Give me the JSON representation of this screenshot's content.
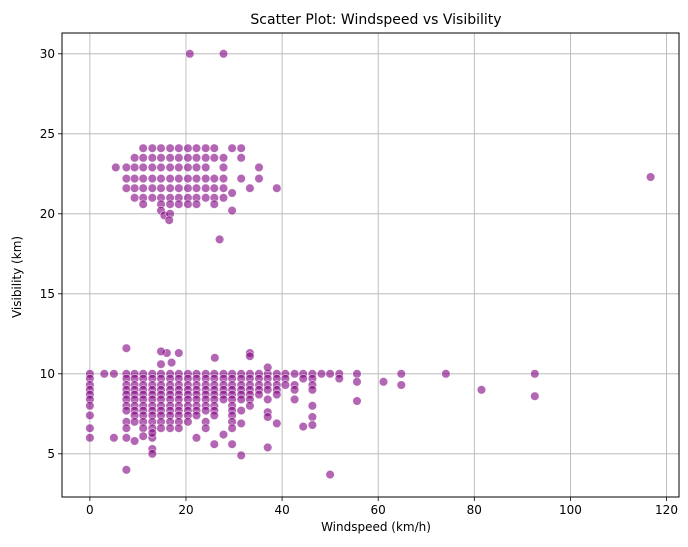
{
  "chart_data": {
    "type": "scatter",
    "title": "Scatter Plot: Windspeed vs Visibility",
    "xlabel": "Windspeed (km/h)",
    "ylabel": "Visibility (km)",
    "xlim": [
      -5.8,
      122.6
    ],
    "ylim": [
      2.3,
      31.3
    ],
    "xticks": [
      0,
      20,
      40,
      60,
      80,
      100,
      120
    ],
    "yticks": [
      5,
      10,
      15,
      20,
      25,
      30
    ],
    "grid": true,
    "legend": "none",
    "marker_color": "#800080",
    "marker_alpha": 0.6,
    "series": [
      {
        "points": [
          [
            20.8,
            30.0
          ],
          [
            27.8,
            30.0
          ],
          [
            116.7,
            22.3
          ],
          [
            5.4,
            22.9
          ],
          [
            11.1,
            24.1
          ],
          [
            13.0,
            24.1
          ],
          [
            14.8,
            24.1
          ],
          [
            16.7,
            24.1
          ],
          [
            18.5,
            24.1
          ],
          [
            20.4,
            24.1
          ],
          [
            22.2,
            24.1
          ],
          [
            24.1,
            24.1
          ],
          [
            25.9,
            24.1
          ],
          [
            29.6,
            24.1
          ],
          [
            31.5,
            24.1
          ],
          [
            9.3,
            23.5
          ],
          [
            11.1,
            23.5
          ],
          [
            13.0,
            23.5
          ],
          [
            14.8,
            23.5
          ],
          [
            16.7,
            23.5
          ],
          [
            18.5,
            23.5
          ],
          [
            20.4,
            23.5
          ],
          [
            22.2,
            23.5
          ],
          [
            24.1,
            23.5
          ],
          [
            25.9,
            23.5
          ],
          [
            27.8,
            23.5
          ],
          [
            31.5,
            23.5
          ],
          [
            7.6,
            22.9
          ],
          [
            9.3,
            22.9
          ],
          [
            11.1,
            22.9
          ],
          [
            13.0,
            22.9
          ],
          [
            14.8,
            22.9
          ],
          [
            16.7,
            22.9
          ],
          [
            18.5,
            22.9
          ],
          [
            20.4,
            22.9
          ],
          [
            22.2,
            22.9
          ],
          [
            24.1,
            22.9
          ],
          [
            27.8,
            22.9
          ],
          [
            35.2,
            22.9
          ],
          [
            7.6,
            22.2
          ],
          [
            9.3,
            22.2
          ],
          [
            11.1,
            22.2
          ],
          [
            13.0,
            22.2
          ],
          [
            14.8,
            22.2
          ],
          [
            16.7,
            22.2
          ],
          [
            18.5,
            22.2
          ],
          [
            20.4,
            22.2
          ],
          [
            22.2,
            22.2
          ],
          [
            24.1,
            22.2
          ],
          [
            25.9,
            22.2
          ],
          [
            27.8,
            22.2
          ],
          [
            31.5,
            22.2
          ],
          [
            35.2,
            22.2
          ],
          [
            7.6,
            21.6
          ],
          [
            9.3,
            21.6
          ],
          [
            11.1,
            21.6
          ],
          [
            13.0,
            21.6
          ],
          [
            14.8,
            21.6
          ],
          [
            16.7,
            21.6
          ],
          [
            18.5,
            21.6
          ],
          [
            20.4,
            21.6
          ],
          [
            22.2,
            21.6
          ],
          [
            24.1,
            21.6
          ],
          [
            25.9,
            21.6
          ],
          [
            27.8,
            21.6
          ],
          [
            33.3,
            21.6
          ],
          [
            38.9,
            21.6
          ],
          [
            9.3,
            21.0
          ],
          [
            11.1,
            21.0
          ],
          [
            13.0,
            21.0
          ],
          [
            14.8,
            21.0
          ],
          [
            16.7,
            21.0
          ],
          [
            18.5,
            21.0
          ],
          [
            20.4,
            21.0
          ],
          [
            22.2,
            21.0
          ],
          [
            24.1,
            21.0
          ],
          [
            25.9,
            21.0
          ],
          [
            27.8,
            21.0
          ],
          [
            29.6,
            21.3
          ],
          [
            11.1,
            20.6
          ],
          [
            14.8,
            20.6
          ],
          [
            16.7,
            20.6
          ],
          [
            18.5,
            20.6
          ],
          [
            20.4,
            20.6
          ],
          [
            22.2,
            20.6
          ],
          [
            25.9,
            20.6
          ],
          [
            29.6,
            20.2
          ],
          [
            14.8,
            20.2
          ],
          [
            15.5,
            19.9
          ],
          [
            16.7,
            20.0
          ],
          [
            16.5,
            19.6
          ],
          [
            27.0,
            18.4
          ],
          [
            0.0,
            10.0
          ],
          [
            3.0,
            10.0
          ],
          [
            5.0,
            10.0
          ],
          [
            7.6,
            10.0
          ],
          [
            9.3,
            10.0
          ],
          [
            11.1,
            10.0
          ],
          [
            13.0,
            10.0
          ],
          [
            14.8,
            10.0
          ],
          [
            16.7,
            10.0
          ],
          [
            18.5,
            10.0
          ],
          [
            20.4,
            10.0
          ],
          [
            22.2,
            10.0
          ],
          [
            24.1,
            10.0
          ],
          [
            25.9,
            10.0
          ],
          [
            27.8,
            10.0
          ],
          [
            29.6,
            10.0
          ],
          [
            31.5,
            10.0
          ],
          [
            33.3,
            10.0
          ],
          [
            35.2,
            10.0
          ],
          [
            37.0,
            10.0
          ],
          [
            38.9,
            10.0
          ],
          [
            40.7,
            10.0
          ],
          [
            42.6,
            10.0
          ],
          [
            44.4,
            10.0
          ],
          [
            46.3,
            10.0
          ],
          [
            48.2,
            10.0
          ],
          [
            50.0,
            10.0
          ],
          [
            51.9,
            10.0
          ],
          [
            55.6,
            10.0
          ],
          [
            64.8,
            10.0
          ],
          [
            74.1,
            10.0
          ],
          [
            92.6,
            10.0
          ],
          [
            7.6,
            11.6
          ],
          [
            14.8,
            10.6
          ],
          [
            16.0,
            11.3
          ],
          [
            17.0,
            10.7
          ],
          [
            18.5,
            11.3
          ],
          [
            14.8,
            11.4
          ],
          [
            26.0,
            11.0
          ],
          [
            33.3,
            11.3
          ],
          [
            33.3,
            11.1
          ],
          [
            37.0,
            10.4
          ],
          [
            0.0,
            9.7
          ],
          [
            7.6,
            9.7
          ],
          [
            9.3,
            9.7
          ],
          [
            11.1,
            9.7
          ],
          [
            13.0,
            9.7
          ],
          [
            14.8,
            9.7
          ],
          [
            16.7,
            9.7
          ],
          [
            18.5,
            9.7
          ],
          [
            20.4,
            9.7
          ],
          [
            22.2,
            9.7
          ],
          [
            24.1,
            9.7
          ],
          [
            25.9,
            9.7
          ],
          [
            27.8,
            9.7
          ],
          [
            29.6,
            9.7
          ],
          [
            31.5,
            9.7
          ],
          [
            33.3,
            9.7
          ],
          [
            35.2,
            9.7
          ],
          [
            37.0,
            9.7
          ],
          [
            38.9,
            9.7
          ],
          [
            40.7,
            9.7
          ],
          [
            44.4,
            9.7
          ],
          [
            46.3,
            9.7
          ],
          [
            51.9,
            9.7
          ],
          [
            55.6,
            9.5
          ],
          [
            61.1,
            9.5
          ],
          [
            0.0,
            9.3
          ],
          [
            7.6,
            9.3
          ],
          [
            9.3,
            9.3
          ],
          [
            11.1,
            9.3
          ],
          [
            13.0,
            9.3
          ],
          [
            14.8,
            9.3
          ],
          [
            16.7,
            9.3
          ],
          [
            18.5,
            9.3
          ],
          [
            20.4,
            9.3
          ],
          [
            22.2,
            9.3
          ],
          [
            24.1,
            9.3
          ],
          [
            25.9,
            9.3
          ],
          [
            27.8,
            9.3
          ],
          [
            29.6,
            9.3
          ],
          [
            31.5,
            9.3
          ],
          [
            33.3,
            9.3
          ],
          [
            35.2,
            9.3
          ],
          [
            37.0,
            9.3
          ],
          [
            38.9,
            9.3
          ],
          [
            40.7,
            9.3
          ],
          [
            42.6,
            9.3
          ],
          [
            46.3,
            9.3
          ],
          [
            64.8,
            9.3
          ],
          [
            0.0,
            9.0
          ],
          [
            7.6,
            9.0
          ],
          [
            9.3,
            9.0
          ],
          [
            11.1,
            9.0
          ],
          [
            13.0,
            9.0
          ],
          [
            14.8,
            9.0
          ],
          [
            16.7,
            9.0
          ],
          [
            18.5,
            9.0
          ],
          [
            20.4,
            9.0
          ],
          [
            22.2,
            9.0
          ],
          [
            24.1,
            9.0
          ],
          [
            25.9,
            9.0
          ],
          [
            27.8,
            9.0
          ],
          [
            29.6,
            9.0
          ],
          [
            31.5,
            9.0
          ],
          [
            33.3,
            9.0
          ],
          [
            35.2,
            9.0
          ],
          [
            37.0,
            9.0
          ],
          [
            38.9,
            9.0
          ],
          [
            42.6,
            9.0
          ],
          [
            46.3,
            9.0
          ],
          [
            81.5,
            9.0
          ],
          [
            0.0,
            8.7
          ],
          [
            7.6,
            8.7
          ],
          [
            9.3,
            8.7
          ],
          [
            11.1,
            8.7
          ],
          [
            13.0,
            8.7
          ],
          [
            14.8,
            8.7
          ],
          [
            16.7,
            8.7
          ],
          [
            18.5,
            8.7
          ],
          [
            20.4,
            8.7
          ],
          [
            22.2,
            8.7
          ],
          [
            24.1,
            8.7
          ],
          [
            25.9,
            8.7
          ],
          [
            27.8,
            8.7
          ],
          [
            29.6,
            8.7
          ],
          [
            31.5,
            8.7
          ],
          [
            33.3,
            8.7
          ],
          [
            35.2,
            8.7
          ],
          [
            38.9,
            8.7
          ],
          [
            92.6,
            8.6
          ],
          [
            0.0,
            8.4
          ],
          [
            7.6,
            8.4
          ],
          [
            9.3,
            8.4
          ],
          [
            11.1,
            8.4
          ],
          [
            13.0,
            8.4
          ],
          [
            14.8,
            8.4
          ],
          [
            16.7,
            8.4
          ],
          [
            18.5,
            8.4
          ],
          [
            20.4,
            8.4
          ],
          [
            22.2,
            8.4
          ],
          [
            24.1,
            8.4
          ],
          [
            25.9,
            8.4
          ],
          [
            27.8,
            8.4
          ],
          [
            29.6,
            8.4
          ],
          [
            31.5,
            8.4
          ],
          [
            33.3,
            8.4
          ],
          [
            37.0,
            8.4
          ],
          [
            42.6,
            8.4
          ],
          [
            55.6,
            8.3
          ],
          [
            0.0,
            8.0
          ],
          [
            7.6,
            8.0
          ],
          [
            9.3,
            8.0
          ],
          [
            11.1,
            8.0
          ],
          [
            13.0,
            8.0
          ],
          [
            14.8,
            8.0
          ],
          [
            16.7,
            8.0
          ],
          [
            18.5,
            8.0
          ],
          [
            20.4,
            8.0
          ],
          [
            22.2,
            8.0
          ],
          [
            24.1,
            8.0
          ],
          [
            25.9,
            8.0
          ],
          [
            29.6,
            8.0
          ],
          [
            33.3,
            8.0
          ],
          [
            46.3,
            8.0
          ],
          [
            7.6,
            7.7
          ],
          [
            9.3,
            7.7
          ],
          [
            11.1,
            7.7
          ],
          [
            13.0,
            7.7
          ],
          [
            14.8,
            7.7
          ],
          [
            16.7,
            7.7
          ],
          [
            18.5,
            7.7
          ],
          [
            20.4,
            7.7
          ],
          [
            22.2,
            7.7
          ],
          [
            24.1,
            7.7
          ],
          [
            25.9,
            7.7
          ],
          [
            29.6,
            7.7
          ],
          [
            31.5,
            7.7
          ],
          [
            37.0,
            7.6
          ],
          [
            0.0,
            7.4
          ],
          [
            9.3,
            7.4
          ],
          [
            11.1,
            7.4
          ],
          [
            13.0,
            7.4
          ],
          [
            14.8,
            7.4
          ],
          [
            16.7,
            7.4
          ],
          [
            18.5,
            7.4
          ],
          [
            20.4,
            7.4
          ],
          [
            22.2,
            7.4
          ],
          [
            25.9,
            7.4
          ],
          [
            29.6,
            7.4
          ],
          [
            37.0,
            7.3
          ],
          [
            46.3,
            7.3
          ],
          [
            7.6,
            7.0
          ],
          [
            9.3,
            7.0
          ],
          [
            11.1,
            7.0
          ],
          [
            13.0,
            7.0
          ],
          [
            14.8,
            7.0
          ],
          [
            16.7,
            7.0
          ],
          [
            18.5,
            7.0
          ],
          [
            20.4,
            7.0
          ],
          [
            24.1,
            7.0
          ],
          [
            29.6,
            7.0
          ],
          [
            31.5,
            6.9
          ],
          [
            38.9,
            6.9
          ],
          [
            46.3,
            6.8
          ],
          [
            44.4,
            6.7
          ],
          [
            0.0,
            6.6
          ],
          [
            7.6,
            6.6
          ],
          [
            11.1,
            6.6
          ],
          [
            13.0,
            6.6
          ],
          [
            14.8,
            6.6
          ],
          [
            16.7,
            6.6
          ],
          [
            18.5,
            6.6
          ],
          [
            24.1,
            6.6
          ],
          [
            29.6,
            6.6
          ],
          [
            0.0,
            6.0
          ],
          [
            5.0,
            6.0
          ],
          [
            7.6,
            6.0
          ],
          [
            9.3,
            5.8
          ],
          [
            11.1,
            6.1
          ],
          [
            13.0,
            6.0
          ],
          [
            13.0,
            6.3
          ],
          [
            22.2,
            6.0
          ],
          [
            27.8,
            6.2
          ],
          [
            29.6,
            5.6
          ],
          [
            25.9,
            5.6
          ],
          [
            37.0,
            5.4
          ],
          [
            13.0,
            5.3
          ],
          [
            13.0,
            5.0
          ],
          [
            31.5,
            4.9
          ],
          [
            7.6,
            4.0
          ],
          [
            50.0,
            3.7
          ]
        ]
      }
    ]
  }
}
